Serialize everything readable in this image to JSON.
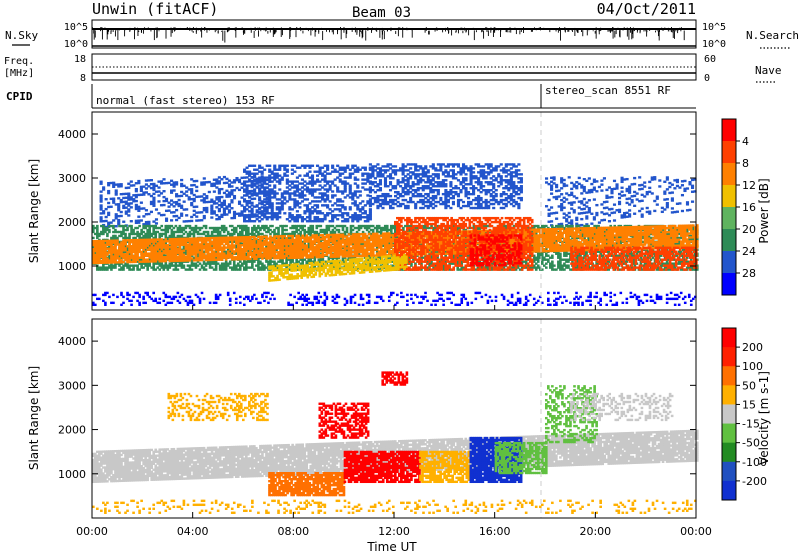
{
  "header": {
    "station": "Unwin (fitACF)",
    "beam": "Beam 03",
    "date": "04/Oct/2011"
  },
  "summary_panels": {
    "nsky_label": "N.Sky",
    "nsearch_label": "N.Search",
    "count_ticks": [
      "10^5",
      "10^0"
    ],
    "freq_label": "Freq.",
    "freq_unit": "[MHz]",
    "freq_ticks": [
      "18",
      "8"
    ],
    "nave_label": "Nave",
    "nave_ticks": [
      "60",
      "0"
    ],
    "cpid_label": "CPID",
    "cpid_modes": [
      {
        "label": "normal (fast stereo) 153 RF",
        "start_hour": 0
      },
      {
        "label": "stereo_scan 8551 RF",
        "start_hour": 18
      }
    ]
  },
  "chart_data": [
    {
      "type": "heatmap",
      "name": "power",
      "ylabel": "Slant Range [km]",
      "x_range_hours": [
        0,
        24
      ],
      "ylim": [
        0,
        4500
      ],
      "yticks": [
        1000,
        2000,
        3000,
        4000
      ],
      "colorbar": {
        "label": "Power [dB]",
        "ticks": [
          "4",
          "8",
          "12",
          "16",
          "20",
          "24",
          "28"
        ],
        "colors": [
          "#0000ff",
          "#2255cc",
          "#2e8b57",
          "#5fb35f",
          "#f0c000",
          "#ff8000",
          "#ff4000",
          "#ff0000"
        ]
      }
    },
    {
      "type": "heatmap",
      "name": "velocity",
      "ylabel": "Slant Range [km]",
      "xlabel": "Time UT",
      "x_range_hours": [
        0,
        24
      ],
      "xticks": [
        "00:00",
        "04:00",
        "08:00",
        "12:00",
        "16:00",
        "20:00",
        "00:00"
      ],
      "ylim": [
        0,
        4500
      ],
      "yticks": [
        1000,
        2000,
        3000,
        4000
      ],
      "colorbar": {
        "label": "Velocity [m s-1]",
        "ticks": [
          "200",
          "100",
          "50",
          "15",
          "-15",
          "-50",
          "-100",
          "-200"
        ],
        "colors": [
          "#1030d0",
          "#2050c0",
          "#228b22",
          "#60c040",
          "#c8c8c8",
          "#ffb000",
          "#ff7000",
          "#ff2000",
          "#ff0000"
        ]
      }
    }
  ]
}
